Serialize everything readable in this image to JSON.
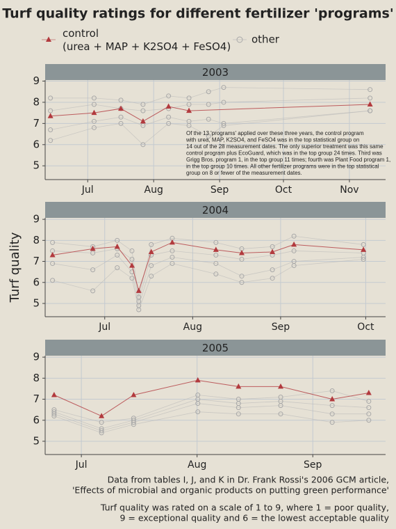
{
  "chart_data": {
    "type": "line",
    "title": "Turf quality ratings for different fertilizer 'programs'",
    "y_label": "Turf quality",
    "grid": true,
    "caption": [
      [
        "Data from tables I, J, and K in Dr. Frank Rossi's 2006 GCM article,",
        "'Effects of microbial and organic products on putting green performance'"
      ],
      [
        "Turf quality was rated on a scale of 1 to 9, where 1 = poor quality,",
        "9 = exceptional quality and 6 = the lowest acceptable quality"
      ]
    ],
    "panels": [
      {
        "title": "2003",
        "xlim": [
          162,
          322
        ],
        "xticks": [
          {
            "value": 182,
            "label": "Jul"
          },
          {
            "value": 213,
            "label": "Aug"
          },
          {
            "value": 244,
            "label": "Sep"
          },
          {
            "value": 274,
            "label": "Oct"
          },
          {
            "value": 305,
            "label": "Nov"
          }
        ],
        "ylim": [
          4.35,
          9.05
        ],
        "yticks": [
          5,
          6,
          7,
          8,
          9
        ],
        "annotation": [
          "Of the 13 'programs' applied over these three years, the control program",
          "with urea, MAP, K2SO4, and FeSO4 was in the top statistical group on",
          "14 out of the 28 measurement dates. The only superior treatment was this same",
          "control program plus EcoGuard, which was in the top group 24 times. Third was",
          "Grigg Bros. program 1, in the top group 11 times; fourth was Plant Food program 1,",
          "in the top group 10 times. All other fertilizer programs were in the top statistical",
          "group on 8 or fewer of the measurement dates."
        ],
        "series": [
          {
            "name": "other",
            "color": "#b8b8b8",
            "x": [
              164.5,
              185,
              197.6,
              208,
              220,
              229.6,
              238.8,
              245.9,
              314.7
            ],
            "values": [
              8.2,
              8.2,
              8.1,
              7.9,
              8.3,
              8.2,
              8.5,
              8.7,
              8.6
            ]
          },
          {
            "name": "other",
            "color": "#b8b8b8",
            "x": [
              164.5,
              185,
              197.6,
              208,
              220,
              229.6,
              238.8,
              245.9,
              314.7
            ],
            "values": [
              7.6,
              7.9,
              7.7,
              7.6,
              7.7,
              7.9,
              7.9,
              8.0,
              8.2
            ]
          },
          {
            "name": "other",
            "color": "#b8b8b8",
            "x": [
              164.5,
              185,
              197.6,
              208,
              220,
              229.6,
              238.8,
              245.9,
              314.7
            ],
            "values": [
              6.7,
              7.1,
              7.3,
              6.9,
              7.3,
              7.1,
              7.2,
              7.0,
              7.6
            ]
          },
          {
            "name": "other",
            "color": "#b8b8b8",
            "x": [
              164.5,
              185,
              197.6,
              208,
              220,
              229.6,
              238.8,
              245.9,
              314.7
            ],
            "values": [
              6.2,
              6.8,
              7.0,
              6.0,
              7.0,
              6.9,
              6.4,
              6.9,
              7.6
            ]
          },
          {
            "name": "control\n(urea + MAP + K2SO4 + FeSO4)",
            "color": "#b23a3e",
            "x": [
              164.5,
              185,
              197.6,
              208,
              220,
              229.6,
              314.7
            ],
            "values": [
              7.35,
              7.5,
              7.7,
              7.1,
              7.8,
              7.6,
              7.9
            ]
          }
        ]
      },
      {
        "title": "2004",
        "xlim": [
          162,
          282
        ],
        "xticks": [
          {
            "value": 183,
            "label": "Jul"
          },
          {
            "value": 214,
            "label": "Aug"
          },
          {
            "value": 245,
            "label": "Sep"
          },
          {
            "value": 275,
            "label": "Oct"
          }
        ],
        "ylim": [
          4.37,
          9.07
        ],
        "yticks": [
          5,
          6,
          7,
          8,
          9
        ],
        "series": [
          {
            "name": "other",
            "color": "#b8b8b8",
            "x": [
              164.6,
              178.8,
              187.4,
              192.6,
              195,
              199.4,
              206.8,
              222.2,
              231.3,
              242.1,
              249.7,
              274.2
            ],
            "values": [
              7.9,
              7.7,
              8.0,
              7.5,
              5.3,
              7.8,
              8.1,
              7.9,
              7.6,
              7.7,
              8.2,
              7.8
            ]
          },
          {
            "name": "other",
            "color": "#b8b8b8",
            "x": [
              164.6,
              178.8,
              187.4,
              192.6,
              195,
              199.4,
              206.8,
              222.2,
              231.3,
              242.1,
              249.7,
              274.2
            ],
            "values": [
              7.5,
              7.4,
              7.6,
              7.1,
              5.1,
              7.3,
              7.5,
              7.3,
              7.1,
              7.3,
              7.5,
              7.4
            ]
          },
          {
            "name": "other",
            "color": "#b8b8b8",
            "x": [
              164.6,
              178.8,
              187.4,
              192.6,
              195,
              199.4,
              206.8,
              222.2,
              231.3,
              242.1,
              249.7,
              274.2
            ],
            "values": [
              6.9,
              6.6,
              7.3,
              6.5,
              4.9,
              6.8,
              7.2,
              6.9,
              6.3,
              6.6,
              7.0,
              7.2
            ]
          },
          {
            "name": "other",
            "color": "#b8b8b8",
            "x": [
              164.6,
              178.8,
              187.4,
              192.6,
              195,
              199.4,
              206.8,
              222.2,
              231.3,
              242.1,
              249.7,
              274.2
            ],
            "values": [
              6.1,
              5.6,
              6.7,
              6.2,
              4.7,
              6.3,
              6.9,
              6.4,
              6.0,
              6.2,
              6.8,
              7.1
            ]
          },
          {
            "name": "control\n(urea + MAP + K2SO4 + FeSO4)",
            "color": "#b23a3e",
            "x": [
              164.6,
              178.8,
              187.4,
              192.6,
              195,
              199.4,
              206.8,
              222.2,
              231.3,
              242.1,
              249.7,
              274.2
            ],
            "values": [
              7.3,
              7.6,
              7.7,
              6.8,
              5.6,
              7.45,
              7.9,
              7.55,
              7.4,
              7.45,
              7.8,
              7.55
            ]
          }
        ]
      },
      {
        "title": "2005",
        "xlim": [
          172.3,
          263.5
        ],
        "xticks": [
          {
            "value": 182,
            "label": "Jul"
          },
          {
            "value": 213,
            "label": "Aug"
          },
          {
            "value": 244,
            "label": "Sep"
          }
        ],
        "ylim": [
          4.37,
          9.07
        ],
        "yticks": [
          5,
          6,
          7,
          8,
          9
        ],
        "series": [
          {
            "name": "other",
            "color": "#b8b8b8",
            "x": [
              174.7,
              187.4,
              196,
              213.2,
              224.1,
              235.4,
              249.2,
              259
            ],
            "values": [
              6.5,
              5.9,
              6.1,
              7.2,
              7.0,
              7.1,
              7.4,
              6.9
            ]
          },
          {
            "name": "other",
            "color": "#b8b8b8",
            "x": [
              174.7,
              187.4,
              196,
              213.2,
              224.1,
              235.4,
              249.2,
              259
            ],
            "values": [
              6.4,
              5.6,
              6.0,
              7.0,
              6.8,
              6.9,
              6.7,
              6.6
            ]
          },
          {
            "name": "other",
            "color": "#b8b8b8",
            "x": [
              174.7,
              187.4,
              196,
              213.2,
              224.1,
              235.4,
              249.2,
              259
            ],
            "values": [
              6.3,
              5.5,
              5.9,
              6.8,
              6.6,
              6.7,
              6.3,
              6.3
            ]
          },
          {
            "name": "other",
            "color": "#b8b8b8",
            "x": [
              174.7,
              187.4,
              196,
              213.2,
              224.1,
              235.4,
              249.2,
              259
            ],
            "values": [
              6.2,
              5.4,
              5.8,
              6.4,
              6.3,
              6.3,
              5.9,
              6.0
            ]
          },
          {
            "name": "control\n(urea + MAP + K2SO4 + FeSO4)",
            "color": "#b23a3e",
            "x": [
              174.7,
              187.4,
              196,
              213.2,
              224.1,
              235.4,
              249.2,
              259
            ],
            "values": [
              7.2,
              6.2,
              7.2,
              7.9,
              7.6,
              7.6,
              7.0,
              7.3
            ]
          }
        ]
      }
    ]
  }
}
